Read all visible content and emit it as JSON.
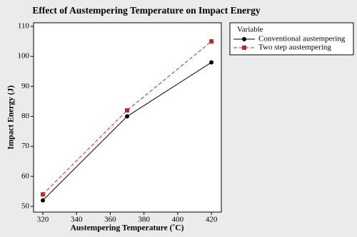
{
  "chart_data": {
    "type": "line",
    "title": "Effect of Austempering Temperature on Impact Energy",
    "xlabel": "Austempering Temperature (˚C)",
    "ylabel": "Impact Energy  (J)",
    "legend_title": "Variable",
    "legend": "right",
    "x": [
      320,
      370,
      420
    ],
    "series": [
      {
        "name": "Conventional austempering",
        "color": "#000000",
        "marker": "circle",
        "dash": false,
        "values": [
          52,
          80,
          98
        ]
      },
      {
        "name": "Two step austempering",
        "color": "#b52b2b",
        "marker": "square",
        "dash": true,
        "values": [
          54,
          82,
          105
        ]
      }
    ],
    "xlim": [
      314.5,
      425.9
    ],
    "xticks": [
      320,
      340,
      360,
      380,
      400,
      420
    ],
    "ylim": [
      48.1,
      111.2
    ],
    "yticks": [
      50,
      60,
      70,
      80,
      90,
      100,
      110
    ]
  }
}
